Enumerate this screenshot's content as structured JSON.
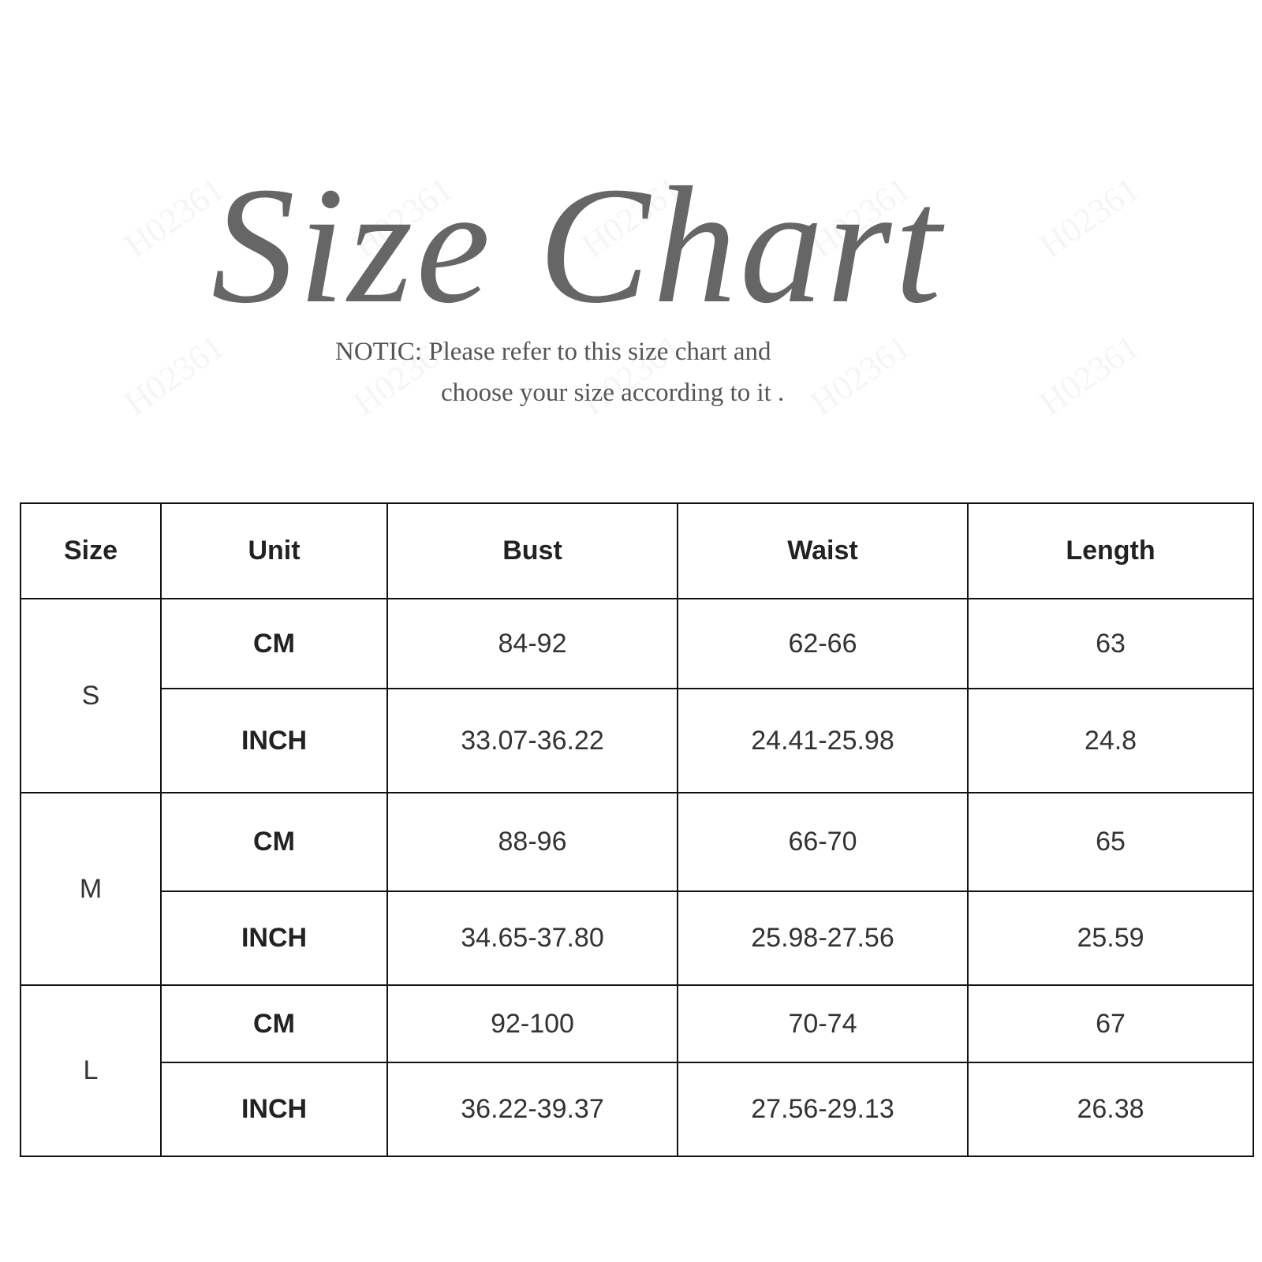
{
  "watermark": "H02361",
  "title": "Size Chart",
  "notice": {
    "line1": "NOTIC: Please refer to this size chart and",
    "line2": "choose your size according to it ."
  },
  "table": {
    "headers": [
      "Size",
      "Unit",
      "Bust",
      "Waist",
      "Length"
    ],
    "sizes": [
      {
        "size": "S",
        "rows": [
          {
            "unit": "CM",
            "bust": "84-92",
            "waist": "62-66",
            "length": "63"
          },
          {
            "unit": "INCH",
            "bust": "33.07-36.22",
            "waist": "24.41-25.98",
            "length": "24.8"
          }
        ]
      },
      {
        "size": "M",
        "rows": [
          {
            "unit": "CM",
            "bust": "88-96",
            "waist": "66-70",
            "length": "65"
          },
          {
            "unit": "INCH",
            "bust": "34.65-37.80",
            "waist": "25.98-27.56",
            "length": "25.59"
          }
        ]
      },
      {
        "size": "L",
        "rows": [
          {
            "unit": "CM",
            "bust": "92-100",
            "waist": "70-74",
            "length": "67"
          },
          {
            "unit": "INCH",
            "bust": "36.22-39.37",
            "waist": "27.56-29.13",
            "length": "26.38"
          }
        ]
      }
    ]
  }
}
